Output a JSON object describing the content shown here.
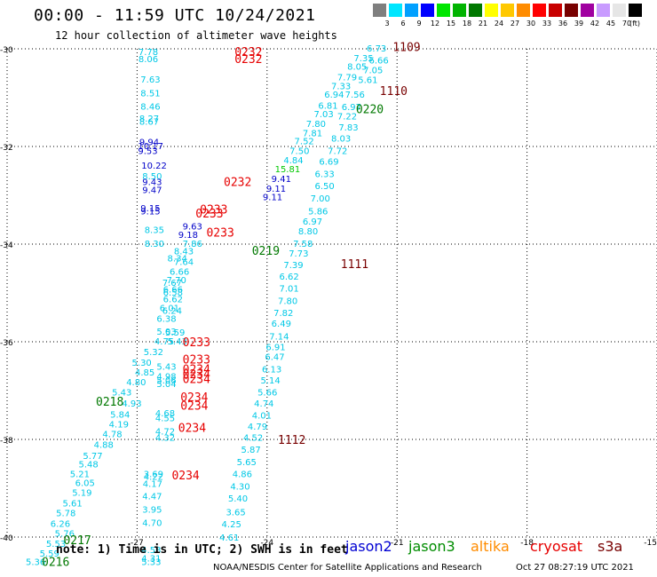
{
  "title": "00:00 - 11:59 UTC 10/24/2021",
  "subtitle": "12 hour collection of altimeter wave heights",
  "colorbar": {
    "unit": "(ft)",
    "bins": [
      {
        "label": "3",
        "color": "#7f7f7f"
      },
      {
        "label": "6",
        "color": "#00e6ff"
      },
      {
        "label": "9",
        "color": "#00a0ff"
      },
      {
        "label": "12",
        "color": "#0000ff"
      },
      {
        "label": "15",
        "color": "#00e600"
      },
      {
        "label": "18",
        "color": "#00b400"
      },
      {
        "label": "21",
        "color": "#007800"
      },
      {
        "label": "24",
        "color": "#ffff00"
      },
      {
        "label": "27",
        "color": "#ffc800"
      },
      {
        "label": "30",
        "color": "#ff8c00"
      },
      {
        "label": "33",
        "color": "#ff0000"
      },
      {
        "label": "36",
        "color": "#c80000"
      },
      {
        "label": "39",
        "color": "#780000"
      },
      {
        "label": "42",
        "color": "#a000a0"
      },
      {
        "label": "45",
        "color": "#c89bff"
      },
      {
        "label": "70",
        "color": "#e6e6e6"
      },
      {
        "label": "",
        "color": "#000000"
      }
    ]
  },
  "map": {
    "lon_range": [
      -30,
      -15
    ],
    "lat_range": [
      -40,
      -30
    ],
    "lon_ticks": [
      {
        "value": -30,
        "label": "-30"
      },
      {
        "value": -27,
        "label": "-27"
      },
      {
        "value": -24,
        "label": "-24"
      },
      {
        "value": -21,
        "label": "-21"
      },
      {
        "value": -18,
        "label": "-18"
      },
      {
        "value": -15,
        "label": "-15"
      }
    ],
    "lat_ticks": [
      {
        "value": -30,
        "label": "-30"
      },
      {
        "value": -32,
        "label": "-32"
      },
      {
        "value": -34,
        "label": "-34"
      },
      {
        "value": -36,
        "label": "-36"
      },
      {
        "value": -38,
        "label": "-38"
      },
      {
        "value": -40,
        "label": "-40"
      }
    ],
    "grid": "dotted"
  },
  "observations": [
    {
      "lon": -26.97,
      "lat": -30.05,
      "text": "7.78",
      "color": "#00c8e6"
    },
    {
      "lon": -26.97,
      "lat": -30.2,
      "text": "8.06",
      "color": "#00c8e6"
    },
    {
      "lon": -26.92,
      "lat": -30.62,
      "text": "7.63",
      "color": "#00c8e6"
    },
    {
      "lon": -26.92,
      "lat": -30.9,
      "text": "8.51",
      "color": "#00c8e6"
    },
    {
      "lon": -26.92,
      "lat": -31.17,
      "text": "8.46",
      "color": "#00c8e6"
    },
    {
      "lon": -26.95,
      "lat": -31.42,
      "text": "8.27",
      "color": "#00c8e6"
    },
    {
      "lon": -26.95,
      "lat": -31.48,
      "text": "8.67",
      "color": "#00c8e6"
    },
    {
      "lon": -26.95,
      "lat": -31.9,
      "text": "9.94",
      "color": "#0000c8"
    },
    {
      "lon": -26.98,
      "lat": -31.98,
      "text": "10.17",
      "color": "#0000c8"
    },
    {
      "lon": -26.98,
      "lat": -32.08,
      "text": "9.53",
      "color": "#0000c8"
    },
    {
      "lon": -26.9,
      "lat": -32.38,
      "text": "10.22",
      "color": "#0000c8"
    },
    {
      "lon": -26.88,
      "lat": -32.6,
      "text": "8.50",
      "color": "#00c8e6"
    },
    {
      "lon": -26.88,
      "lat": -32.72,
      "text": "9.43",
      "color": "#0000c8"
    },
    {
      "lon": -26.88,
      "lat": -32.88,
      "text": "9.47",
      "color": "#0000c8"
    },
    {
      "lon": -26.92,
      "lat": -33.25,
      "text": "9.15",
      "color": "#0000c8"
    },
    {
      "lon": -26.92,
      "lat": -33.32,
      "text": "9.15",
      "color": "#0000c8"
    },
    {
      "lon": -26.83,
      "lat": -33.7,
      "text": "8.35",
      "color": "#00c8e6"
    },
    {
      "lon": -26.83,
      "lat": -33.98,
      "text": "8.30",
      "color": "#00c8e6"
    },
    {
      "lon": -26.05,
      "lat": -33.8,
      "text": "9.18",
      "color": "#0000c8"
    },
    {
      "lon": -25.95,
      "lat": -33.98,
      "text": "7.86",
      "color": "#00c8e6"
    },
    {
      "lon": -25.95,
      "lat": -33.63,
      "text": "9.63",
      "color": "#0000c8"
    },
    {
      "lon": -26.15,
      "lat": -34.14,
      "text": "8.43",
      "color": "#00c8e6"
    },
    {
      "lon": -26.3,
      "lat": -34.28,
      "text": "8.34",
      "color": "#00c8e6"
    },
    {
      "lon": -26.15,
      "lat": -34.35,
      "text": "7.64",
      "color": "#00c8e6"
    },
    {
      "lon": -26.25,
      "lat": -34.55,
      "text": "6.66",
      "color": "#00c8e6"
    },
    {
      "lon": -26.32,
      "lat": -34.73,
      "text": "7.70",
      "color": "#00c8e6"
    },
    {
      "lon": -26.42,
      "lat": -34.78,
      "text": "7.67",
      "color": "#00c8e6"
    },
    {
      "lon": -26.4,
      "lat": -34.92,
      "text": "6.66",
      "color": "#00c8e6"
    },
    {
      "lon": -26.4,
      "lat": -34.98,
      "text": "6.58",
      "color": "#00c8e6"
    },
    {
      "lon": -26.4,
      "lat": -35.12,
      "text": "6.62",
      "color": "#00c8e6"
    },
    {
      "lon": -26.48,
      "lat": -35.3,
      "text": "6.01",
      "color": "#00c8e6"
    },
    {
      "lon": -26.42,
      "lat": -35.35,
      "text": "6.24",
      "color": "#00c8e6"
    },
    {
      "lon": -26.55,
      "lat": -35.52,
      "text": "6.38",
      "color": "#00c8e6"
    },
    {
      "lon": -26.55,
      "lat": -35.78,
      "text": "5.03",
      "color": "#00c8e6"
    },
    {
      "lon": -26.35,
      "lat": -35.8,
      "text": "5.59",
      "color": "#00c8e6"
    },
    {
      "lon": -26.6,
      "lat": -35.98,
      "text": "4.75",
      "color": "#00c8e6"
    },
    {
      "lon": -26.3,
      "lat": -35.98,
      "text": "5.43",
      "color": "#00c8e6"
    },
    {
      "lon": -26.85,
      "lat": -36.2,
      "text": "5.32",
      "color": "#00c8e6"
    },
    {
      "lon": -27.12,
      "lat": -36.42,
      "text": "5.30",
      "color": "#00c8e6"
    },
    {
      "lon": -26.55,
      "lat": -36.5,
      "text": "5.43",
      "color": "#00c8e6"
    },
    {
      "lon": -27.05,
      "lat": -36.62,
      "text": "4.85",
      "color": "#00c8e6"
    },
    {
      "lon": -26.55,
      "lat": -36.7,
      "text": "4.98",
      "color": "#00c8e6"
    },
    {
      "lon": -26.55,
      "lat": -36.78,
      "text": "5.06",
      "color": "#00c8e6"
    },
    {
      "lon": -26.55,
      "lat": -36.85,
      "text": "5.04",
      "color": "#00c8e6"
    },
    {
      "lon": -27.25,
      "lat": -36.82,
      "text": "4.80",
      "color": "#00c8e6"
    },
    {
      "lon": -27.58,
      "lat": -37.03,
      "text": "5.43",
      "color": "#00c8e6"
    },
    {
      "lon": -27.35,
      "lat": -37.25,
      "text": "4.93",
      "color": "#00c8e6"
    },
    {
      "lon": -27.62,
      "lat": -37.48,
      "text": "5.84",
      "color": "#00c8e6"
    },
    {
      "lon": -26.58,
      "lat": -37.45,
      "text": "4.68",
      "color": "#00c8e6"
    },
    {
      "lon": -26.58,
      "lat": -37.55,
      "text": "4.55",
      "color": "#00c8e6"
    },
    {
      "lon": -27.65,
      "lat": -37.68,
      "text": "4.19",
      "color": "#00c8e6"
    },
    {
      "lon": -27.8,
      "lat": -37.88,
      "text": "4.78",
      "color": "#00c8e6"
    },
    {
      "lon": -26.58,
      "lat": -37.83,
      "text": "4.72",
      "color": "#00c8e6"
    },
    {
      "lon": -26.58,
      "lat": -37.95,
      "text": "4.32",
      "color": "#00c8e6"
    },
    {
      "lon": -28.0,
      "lat": -38.1,
      "text": "4.88",
      "color": "#00c8e6"
    },
    {
      "lon": -28.25,
      "lat": -38.33,
      "text": "5.77",
      "color": "#00c8e6"
    },
    {
      "lon": -28.35,
      "lat": -38.5,
      "text": "5.48",
      "color": "#00c8e6"
    },
    {
      "lon": -28.55,
      "lat": -38.7,
      "text": "5.21",
      "color": "#00c8e6"
    },
    {
      "lon": -28.43,
      "lat": -38.88,
      "text": "6.05",
      "color": "#00c8e6"
    },
    {
      "lon": -28.5,
      "lat": -39.08,
      "text": "5.19",
      "color": "#00c8e6"
    },
    {
      "lon": -28.72,
      "lat": -39.3,
      "text": "5.61",
      "color": "#00c8e6"
    },
    {
      "lon": -28.87,
      "lat": -39.5,
      "text": "5.78",
      "color": "#00c8e6"
    },
    {
      "lon": -29.0,
      "lat": -39.72,
      "text": "6.26",
      "color": "#00c8e6"
    },
    {
      "lon": -28.9,
      "lat": -39.92,
      "text": "5.76",
      "color": "#00c8e6"
    },
    {
      "lon": -29.1,
      "lat": -40.13,
      "text": "5.53",
      "color": "#00c8e6"
    },
    {
      "lon": -29.25,
      "lat": -40.33,
      "text": "5.59",
      "color": "#00c8e6"
    },
    {
      "lon": -29.57,
      "lat": -40.5,
      "text": "5.36",
      "color": "#00c8e6"
    },
    {
      "lon": -26.85,
      "lat": -38.7,
      "text": "3.69",
      "color": "#00c8e6"
    },
    {
      "lon": -26.85,
      "lat": -38.75,
      "text": "4.22",
      "color": "#00c8e6"
    },
    {
      "lon": -26.87,
      "lat": -38.9,
      "text": "4.17",
      "color": "#00c8e6"
    },
    {
      "lon": -26.88,
      "lat": -39.15,
      "text": "4.47",
      "color": "#00c8e6"
    },
    {
      "lon": -26.88,
      "lat": -39.43,
      "text": "3.95",
      "color": "#00c8e6"
    },
    {
      "lon": -26.88,
      "lat": -39.7,
      "text": "4.70",
      "color": "#00c8e6"
    },
    {
      "lon": -26.9,
      "lat": -40.25,
      "text": "4.53",
      "color": "#00c8e6"
    },
    {
      "lon": -26.9,
      "lat": -40.43,
      "text": "4.31",
      "color": "#00c8e6"
    },
    {
      "lon": -26.9,
      "lat": -40.5,
      "text": "5.33",
      "color": "#00c8e6"
    },
    {
      "lon": -21.7,
      "lat": -29.98,
      "text": "6.73",
      "color": "#00c8e6"
    },
    {
      "lon": -22.0,
      "lat": -30.18,
      "text": "7.35",
      "color": "#00c8e6"
    },
    {
      "lon": -21.65,
      "lat": -30.23,
      "text": "6.66",
      "color": "#00c8e6"
    },
    {
      "lon": -22.15,
      "lat": -30.35,
      "text": "8.05",
      "color": "#00c8e6"
    },
    {
      "lon": -21.78,
      "lat": -30.43,
      "text": "7.05",
      "color": "#00c8e6"
    },
    {
      "lon": -22.38,
      "lat": -30.57,
      "text": "7.79",
      "color": "#00c8e6"
    },
    {
      "lon": -21.9,
      "lat": -30.63,
      "text": "5.61",
      "color": "#00c8e6"
    },
    {
      "lon": -22.52,
      "lat": -30.75,
      "text": "7.33",
      "color": "#00c8e6"
    },
    {
      "lon": -22.68,
      "lat": -30.93,
      "text": "6.94",
      "color": "#00c8e6"
    },
    {
      "lon": -22.2,
      "lat": -30.93,
      "text": "7.56",
      "color": "#00c8e6"
    },
    {
      "lon": -22.82,
      "lat": -31.15,
      "text": "6.81",
      "color": "#00c8e6"
    },
    {
      "lon": -22.28,
      "lat": -31.18,
      "text": "6.97",
      "color": "#00c8e6"
    },
    {
      "lon": -22.92,
      "lat": -31.33,
      "text": "7.03",
      "color": "#00c8e6"
    },
    {
      "lon": -22.38,
      "lat": -31.37,
      "text": "7.22",
      "color": "#00c8e6"
    },
    {
      "lon": -23.1,
      "lat": -31.53,
      "text": "7.80",
      "color": "#00c8e6"
    },
    {
      "lon": -22.35,
      "lat": -31.6,
      "text": "7.83",
      "color": "#00c8e6"
    },
    {
      "lon": -23.18,
      "lat": -31.72,
      "text": "7.81",
      "color": "#00c8e6"
    },
    {
      "lon": -23.37,
      "lat": -31.88,
      "text": "7.52",
      "color": "#00c8e6"
    },
    {
      "lon": -22.52,
      "lat": -31.83,
      "text": "8.03",
      "color": "#00c8e6"
    },
    {
      "lon": -23.48,
      "lat": -32.08,
      "text": "7.50",
      "color": "#00c8e6"
    },
    {
      "lon": -22.6,
      "lat": -32.08,
      "text": "7.72",
      "color": "#00c8e6"
    },
    {
      "lon": -23.62,
      "lat": -32.27,
      "text": "4.84",
      "color": "#00c8e6"
    },
    {
      "lon": -22.8,
      "lat": -32.3,
      "text": "6.69",
      "color": "#00c8e6"
    },
    {
      "lon": -23.82,
      "lat": -32.45,
      "text": "15.81",
      "color": "#00c800"
    },
    {
      "lon": -22.9,
      "lat": -32.55,
      "text": "6.33",
      "color": "#00c8e6"
    },
    {
      "lon": -23.9,
      "lat": -32.65,
      "text": "9.41",
      "color": "#0000c8"
    },
    {
      "lon": -24.02,
      "lat": -32.85,
      "text": "9.11",
      "color": "#0000c8"
    },
    {
      "lon": -22.9,
      "lat": -32.8,
      "text": "6.50",
      "color": "#00c8e6"
    },
    {
      "lon": -24.1,
      "lat": -33.03,
      "text": "9.11",
      "color": "#0000c8"
    },
    {
      "lon": -23.0,
      "lat": -33.05,
      "text": "7.00",
      "color": "#00c8e6"
    },
    {
      "lon": -23.05,
      "lat": -33.32,
      "text": "5.86",
      "color": "#00c8e6"
    },
    {
      "lon": -23.18,
      "lat": -33.53,
      "text": "6.97",
      "color": "#00c8e6"
    },
    {
      "lon": -23.28,
      "lat": -33.73,
      "text": "8.80",
      "color": "#00c8e6"
    },
    {
      "lon": -23.4,
      "lat": -33.98,
      "text": "7.58",
      "color": "#00c8e6"
    },
    {
      "lon": -23.5,
      "lat": -34.18,
      "text": "7.73",
      "color": "#00c8e6"
    },
    {
      "lon": -23.62,
      "lat": -34.42,
      "text": "7.39",
      "color": "#00c8e6"
    },
    {
      "lon": -23.72,
      "lat": -34.65,
      "text": "6.62",
      "color": "#00c8e6"
    },
    {
      "lon": -23.72,
      "lat": -34.9,
      "text": "7.01",
      "color": "#00c8e6"
    },
    {
      "lon": -23.75,
      "lat": -35.15,
      "text": "7.80",
      "color": "#00c8e6"
    },
    {
      "lon": -23.85,
      "lat": -35.4,
      "text": "7.82",
      "color": "#00c8e6"
    },
    {
      "lon": -23.9,
      "lat": -35.62,
      "text": "6.49",
      "color": "#00c8e6"
    },
    {
      "lon": -23.95,
      "lat": -35.88,
      "text": "7.14",
      "color": "#00c8e6"
    },
    {
      "lon": -24.03,
      "lat": -36.1,
      "text": "6.91",
      "color": "#00c8e6"
    },
    {
      "lon": -24.05,
      "lat": -36.3,
      "text": "6.47",
      "color": "#00c8e6"
    },
    {
      "lon": -24.12,
      "lat": -36.55,
      "text": "6.13",
      "color": "#00c8e6"
    },
    {
      "lon": -24.15,
      "lat": -36.78,
      "text": "5.14",
      "color": "#00c8e6"
    },
    {
      "lon": -24.22,
      "lat": -37.03,
      "text": "5.66",
      "color": "#00c8e6"
    },
    {
      "lon": -24.3,
      "lat": -37.25,
      "text": "4.74",
      "color": "#00c8e6"
    },
    {
      "lon": -24.35,
      "lat": -37.5,
      "text": "4.01",
      "color": "#00c8e6"
    },
    {
      "lon": -24.45,
      "lat": -37.73,
      "text": "4.79",
      "color": "#00c8e6"
    },
    {
      "lon": -24.55,
      "lat": -37.95,
      "text": "4.52",
      "color": "#00c8e6"
    },
    {
      "lon": -24.6,
      "lat": -38.2,
      "text": "5.87",
      "color": "#00c8e6"
    },
    {
      "lon": -24.7,
      "lat": -38.45,
      "text": "5.65",
      "color": "#00c8e6"
    },
    {
      "lon": -24.8,
      "lat": -38.7,
      "text": "4.86",
      "color": "#00c8e6"
    },
    {
      "lon": -24.85,
      "lat": -38.95,
      "text": "4.30",
      "color": "#00c8e6"
    },
    {
      "lon": -24.9,
      "lat": -39.2,
      "text": "5.40",
      "color": "#00c8e6"
    },
    {
      "lon": -24.95,
      "lat": -39.48,
      "text": "3.65",
      "color": "#00c8e6"
    },
    {
      "lon": -25.05,
      "lat": -39.73,
      "text": "4.25",
      "color": "#00c8e6"
    },
    {
      "lon": -25.1,
      "lat": -40.0,
      "text": "4.61",
      "color": "#00c8e6"
    }
  ],
  "time_labels": [
    {
      "lon": -24.75,
      "lat": -30.05,
      "text": "0232",
      "color": "#e60000"
    },
    {
      "lon": -24.75,
      "lat": -30.2,
      "text": "0232",
      "color": "#e60000"
    },
    {
      "lon": -25.0,
      "lat": -32.72,
      "text": "0232",
      "color": "#e60000"
    },
    {
      "lon": -25.55,
      "lat": -33.28,
      "text": "0233",
      "color": "#e60000"
    },
    {
      "lon": -25.65,
      "lat": -33.36,
      "text": "0233",
      "color": "#e60000"
    },
    {
      "lon": -25.4,
      "lat": -33.75,
      "text": "0233",
      "color": "#e60000"
    },
    {
      "lon": -25.95,
      "lat": -36.0,
      "text": "0233",
      "color": "#e60000"
    },
    {
      "lon": -25.95,
      "lat": -36.35,
      "text": "0233",
      "color": "#e60000"
    },
    {
      "lon": -25.95,
      "lat": -36.55,
      "text": "0234",
      "color": "#e60000"
    },
    {
      "lon": -25.95,
      "lat": -36.65,
      "text": "0234",
      "color": "#e60000"
    },
    {
      "lon": -25.95,
      "lat": -36.75,
      "text": "0234",
      "color": "#e60000"
    },
    {
      "lon": -26.0,
      "lat": -37.13,
      "text": "0234",
      "color": "#e60000"
    },
    {
      "lon": -26.0,
      "lat": -37.3,
      "text": "0234",
      "color": "#e60000"
    },
    {
      "lon": -26.05,
      "lat": -37.75,
      "text": "0234",
      "color": "#e60000"
    },
    {
      "lon": -26.2,
      "lat": -38.73,
      "text": "0234",
      "color": "#e60000"
    },
    {
      "lon": -24.35,
      "lat": -34.13,
      "text": "0219",
      "color": "#007800"
    },
    {
      "lon": -21.95,
      "lat": -31.23,
      "text": "0220",
      "color": "#007800"
    },
    {
      "lon": -27.95,
      "lat": -37.22,
      "text": "0218",
      "color": "#007800"
    },
    {
      "lon": -28.7,
      "lat": -40.05,
      "text": "0217",
      "color": "#007800"
    },
    {
      "lon": -29.2,
      "lat": -40.5,
      "text": "0216",
      "color": "#007800"
    },
    {
      "lon": -21.1,
      "lat": -29.95,
      "text": "1109",
      "color": "#780000"
    },
    {
      "lon": -21.4,
      "lat": -30.85,
      "text": "1110",
      "color": "#780000"
    },
    {
      "lon": -22.3,
      "lat": -34.4,
      "text": "1111",
      "color": "#780000"
    },
    {
      "lon": -23.75,
      "lat": -38.0,
      "text": "1112",
      "color": "#780000"
    }
  ],
  "note": "note: 1) Time is in UTC; 2) SWH is in feet",
  "satellites": [
    {
      "name": "jason2",
      "color": "#0000d2"
    },
    {
      "name": "jason3",
      "color": "#008c00"
    },
    {
      "name": "altika",
      "color": "#ff8c00"
    },
    {
      "name": "cryosat",
      "color": "#e60000"
    },
    {
      "name": "s3a",
      "color": "#780000"
    }
  ],
  "credit": "NOAA/NESDIS Center for Satellite Applications and Research",
  "timestamp": "Oct 27 08:27:19 UTC 2021"
}
